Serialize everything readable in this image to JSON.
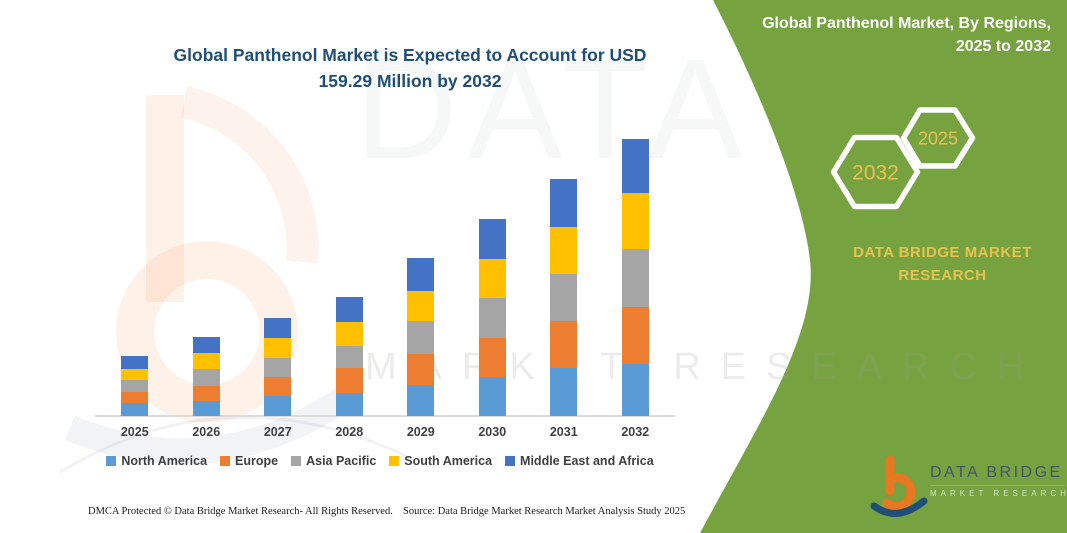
{
  "main": {
    "title": "Global Panthenol Market is Expected to Account for USD 159.29 Million by 2032",
    "footer_left": "DMCA Protected © Data Bridge Market Research-  All Rights Reserved.",
    "footer_source": "Source: Data Bridge Market Research  Market Analysis Study 2025"
  },
  "right_panel": {
    "header_line1": "Global Panthenol Market, By Regions,",
    "header_line2": "2025 to 2032",
    "hexagon_back_label": "2032",
    "hexagon_front_label": "2025",
    "brand_text": "DATA BRIDGE MARKET RESEARCH",
    "logo_title": "DATA BRIDGE",
    "logo_subtitle": "MARKET RESEARCH",
    "panel_color": "#76A240",
    "accent_gold": "#E6C350"
  },
  "watermark": {
    "big_text": "DATA BRIDGE",
    "mid_text": "MARKET RESEARCH"
  },
  "chart_data": {
    "type": "bar",
    "stacked": true,
    "title": "Global Panthenol Market is Expected to Account for USD 159.29 Million by 2032",
    "unit": "USD Million",
    "categories": [
      "2025",
      "2026",
      "2027",
      "2028",
      "2029",
      "2030",
      "2031",
      "2032"
    ],
    "series": [
      {
        "name": "North America",
        "color": "#5B9BD5",
        "values": [
          7.3,
          8.8,
          11.5,
          13.1,
          17.7,
          22.5,
          27.5,
          30.1
        ]
      },
      {
        "name": "Europe",
        "color": "#ED7D31",
        "values": [
          6.7,
          8.5,
          11.1,
          14.4,
          18.2,
          22.5,
          26.9,
          32.6
        ]
      },
      {
        "name": "Asia Pacific",
        "color": "#A5A5A5",
        "values": [
          6.7,
          9.6,
          10.6,
          12.8,
          18.6,
          22.7,
          27.5,
          33.2
        ]
      },
      {
        "name": "South America",
        "color": "#FFC000",
        "values": [
          6.3,
          9.2,
          11.5,
          14.0,
          17.4,
          22.5,
          26.9,
          32.1
        ]
      },
      {
        "name": "Middle East and Africa",
        "color": "#4472C4",
        "values": [
          7.5,
          9.2,
          11.5,
          14.0,
          18.7,
          23.0,
          27.6,
          31.29
        ]
      }
    ],
    "totals_estimated": [
      34.5,
      45.3,
      56.2,
      68.3,
      90.6,
      113.2,
      136.4,
      159.29
    ],
    "ylim": [
      0,
      165
    ],
    "y_axis_visible": false,
    "gridlines": false,
    "legend_position": "bottom"
  }
}
